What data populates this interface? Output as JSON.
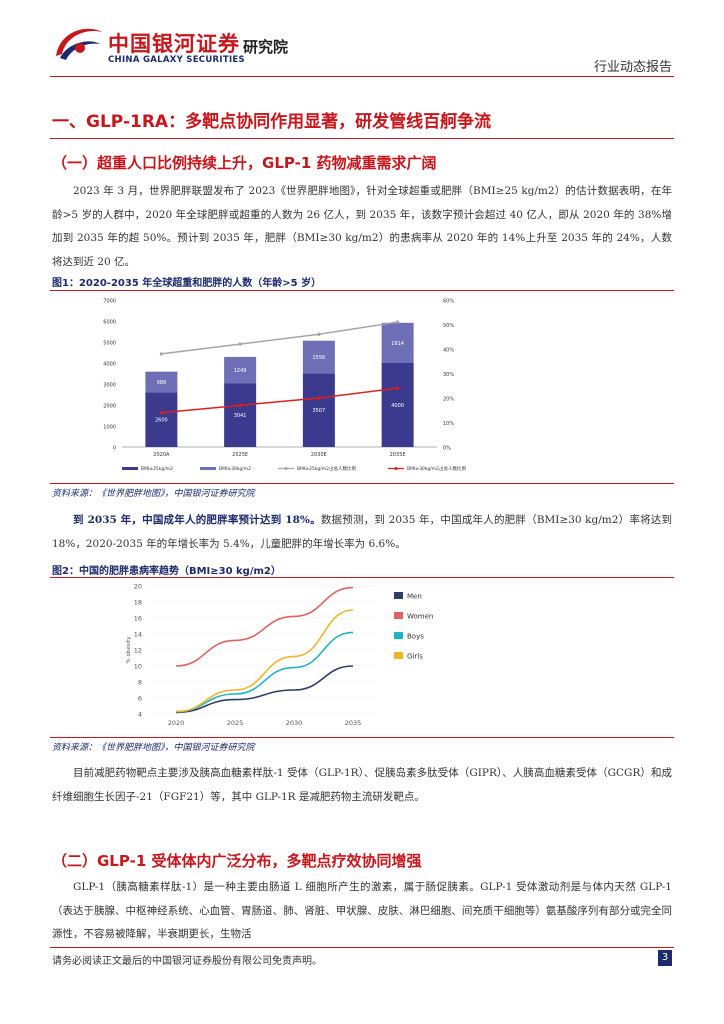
{
  "header": {
    "logo_cn": "中国银河证券",
    "logo_en": "CHINA GALAXY SECURITIES",
    "institute": "研究院",
    "report_type": "行业动态报告",
    "brand_red": "#c8161d",
    "brand_navy": "#1d2a6b"
  },
  "section1": {
    "title": "一、GLP-1RA：多靶点协同作用显著，研发管线百舸争流"
  },
  "subsection1": {
    "title": "（一）超重人口比例持续上升，GLP-1 药物减重需求广阔",
    "para": "2023 年 3 月，世界肥胖联盟发布了 2023《世界肥胖地图》，针对全球超重或肥胖（BMI≥25 kg/m2）的估计数据表明，在年龄>5 岁的人群中，2020 年全球肥胖或超重的人数为 26 亿人，到 2035 年，该数字预计会超过 40 亿人，即从 2020 年的 38%增加到 2035 年的超 50%。预计到 2035 年，肥胖（BMI≥30 kg/m2）的患病率从 2020 年的 14%上升至 2035 年的 24%，人数将达到近 20 亿。"
  },
  "figure1": {
    "title": "图1：2020-2035 年全球超重和肥胖的人数（年龄>5 岁）",
    "source": "资料来源：《世界肥胖地图》，中国银河证券研究院"
  },
  "figure2": {
    "title": "图2：中国的肥胖患病率趋势（BMI≥30 kg/m2）",
    "source": "资料来源：《世界肥胖地图》，中国银河证券研究院"
  },
  "para2": {
    "bold": "到 2035 年，中国成年人的肥胖率预计达到 18%。",
    "text": "数据预测，到 2035 年，中国成年人的肥胖（BMI≥30 kg/m2）率将达到 18%，2020-2035 年的年增长率为 5.4%，儿童肥胖的年增长率为 6.6%。"
  },
  "para3": {
    "text": "目前减肥药物靶点主要涉及胰高血糖素样肽-1 受体（GLP-1R）、促胰岛素多肽受体（GIPR）、人胰高血糖素受体（GCGR）和成纤维细胞生长因子-21（FGF21）等，其中 GLP-1R 是减肥药物主流研发靶点。"
  },
  "subsection2": {
    "title": "（二）GLP-1 受体体内广泛分布，多靶点疗效协同增强",
    "para": "GLP-1（胰高糖素样肽-1）是一种主要由肠道 L 细胞所产生的激素，属于肠促胰素。GLP-1 受体激动剂是与体内天然 GLP-1（表达于胰腺、中枢神经系统、心血管、胃肠道、肺、肾脏、甲状腺、皮肤、淋巴细胞、间充质干细胞等）氨基酸序列有部分或完全同源性，不容易被降解，半衰期更长，生物活"
  },
  "footer": {
    "disclaimer": "请务必阅读正文最后的中国银河证券股份有限公司免责声明。",
    "page": "3"
  },
  "chart_data": [
    {
      "type": "bar",
      "subtype": "stacked-bar-with-lines",
      "categories": [
        "2020A",
        "2025E",
        "2030E",
        "2035E"
      ],
      "y_ticks_left": [
        "0",
        "1000",
        "2000",
        "3000",
        "4000",
        "5000",
        "6000",
        "7000"
      ],
      "y_ticks_right": [
        "0%",
        "10%",
        "20%",
        "30%",
        "40%",
        "50%",
        "60%"
      ],
      "ylim": [
        0,
        7000
      ],
      "y2lim": [
        0,
        0.6
      ],
      "series": [
        {
          "name": "BMI≥25kg/m2",
          "kind": "bar",
          "color": "#3b3a8f",
          "values": [
            2600,
            3041,
            3507,
            4000
          ],
          "labels": [
            "2600",
            "3041",
            "3507",
            "4000"
          ]
        },
        {
          "name": "BMI≥30kg/m2",
          "kind": "bar",
          "color": "#6f6fb8",
          "values": [
            988,
            1249,
            1556,
            1914
          ],
          "labels": [
            "988",
            "1249",
            "1556",
            "1914"
          ]
        },
        {
          "name": "BMI≥25kg/m2占总人数比例",
          "kind": "line",
          "axis": "right",
          "color": "#a6a6a6",
          "values": [
            0.38,
            0.42,
            0.46,
            0.51
          ]
        },
        {
          "name": "BMI≥30kg/m2占总人数比例",
          "kind": "line",
          "axis": "right",
          "color": "#e0201b",
          "values": [
            0.14,
            0.17,
            0.2,
            0.24
          ]
        }
      ],
      "legend_position": "bottom"
    },
    {
      "type": "line",
      "x": [
        2020,
        2025,
        2030,
        2035
      ],
      "x_ticks": [
        "2020",
        "2025",
        "2030",
        "2035"
      ],
      "y_ticks": [
        "4",
        "6",
        "8",
        "10",
        "12",
        "14",
        "16",
        "18",
        "20"
      ],
      "ylabel": "% obesity",
      "ylim": [
        4,
        20
      ],
      "series": [
        {
          "name": "Men",
          "color": "#2d3e6b",
          "values": [
            4.2,
            5.8,
            7.0,
            10.0
          ]
        },
        {
          "name": "Women",
          "color": "#e06363",
          "values": [
            10.0,
            13.2,
            16.2,
            19.8
          ]
        },
        {
          "name": "Boys",
          "color": "#1eb4c8",
          "values": [
            4.3,
            6.5,
            9.8,
            14.2
          ]
        },
        {
          "name": "Girls",
          "color": "#f0b429",
          "values": [
            4.3,
            7.0,
            11.2,
            17.0
          ]
        }
      ],
      "legend_position": "right"
    }
  ]
}
